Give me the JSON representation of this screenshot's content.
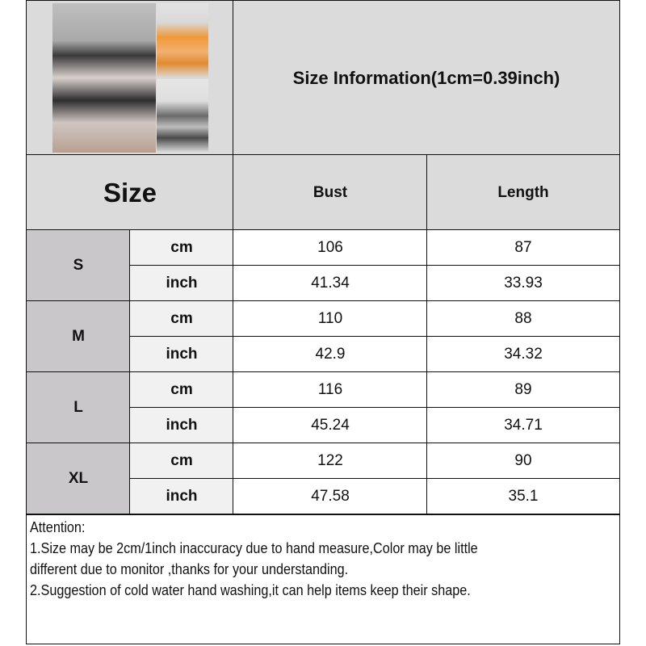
{
  "title": "Size Information(1cm=0.39inch)",
  "size_header": "Size",
  "columns": [
    "Bust",
    "Length"
  ],
  "rows": [
    {
      "size": "S",
      "cm": [
        "106",
        "87"
      ],
      "inch": [
        "41.34",
        "33.93"
      ]
    },
    {
      "size": "M",
      "cm": [
        "110",
        "88"
      ],
      "inch": [
        "42.9",
        "34.32"
      ]
    },
    {
      "size": "L",
      "cm": [
        "116",
        "89"
      ],
      "inch": [
        "45.24",
        "34.71"
      ]
    },
    {
      "size": "XL",
      "cm": [
        "122",
        "90"
      ],
      "inch": [
        "47.58",
        "35.1"
      ]
    }
  ],
  "unit_labels": {
    "cm": "cm",
    "inch": "inch"
  },
  "notes": [
    "Attention:",
    "1.Size may be 2cm/1inch inaccuracy due to hand measure,Color may be little",
    "different due to monitor ,thanks for your understanding.",
    "2.Suggestion of cold water hand washing,it can help items keep their shape."
  ],
  "colors": {
    "header_bg": "#dcdbdc",
    "size_bg": "#c9c7c9",
    "unit_bg": "#f1f1f1"
  }
}
